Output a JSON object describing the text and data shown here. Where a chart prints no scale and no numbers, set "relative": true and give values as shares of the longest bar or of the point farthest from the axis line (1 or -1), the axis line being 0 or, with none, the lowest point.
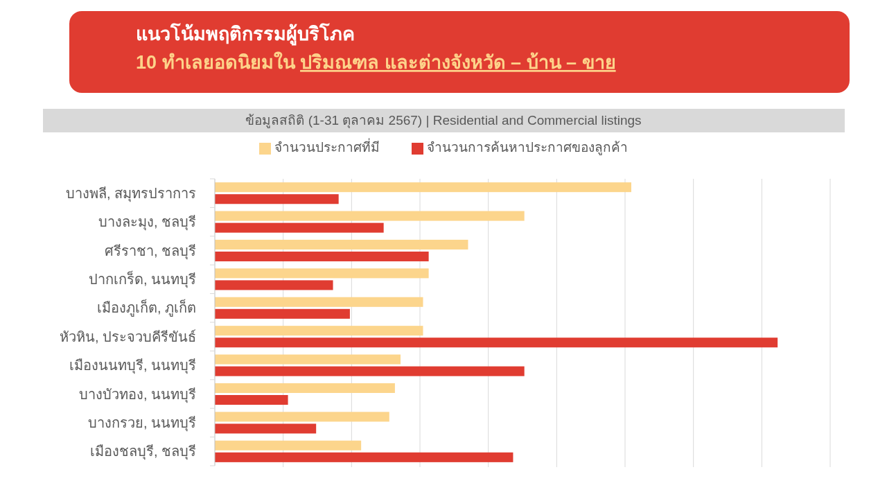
{
  "chart_data": {
    "type": "bar",
    "orientation": "horizontal",
    "relative": true,
    "title": "แนวโน้มพฤติกรรมผู้บริโภค",
    "subtitle": "10 ทำเลยอดนิยมใน ปริมณฑล และต่างจังหวัด – บ้าน – ขาย",
    "annotations": [
      "ข้อมูลสถิติ (1-31 ตุลาคม 2567) | Residential and Commercial listings"
    ],
    "categories": [
      "บางพลี, สมุทรปราการ",
      "บางละมุง, ชลบุรี",
      "ศรีราชา, ชลบุรี",
      "ปากเกร็ด, นนทบุรี",
      "เมืองภูเก็ต, ภูเก็ต",
      "หัวหิน, ประจวบคีรีขันธ์",
      "เมืองนนทบุรี, นนทบุรี",
      "บางบัวทอง, นนทบุรี",
      "บางกรวย, นนทบุรี",
      "เมืองชลบุรี, ชลบุรี"
    ],
    "series": [
      {
        "name": "จำนวนประกาศที่มี",
        "color": "#fcd58c",
        "values": [
          0.74,
          0.55,
          0.45,
          0.38,
          0.37,
          0.37,
          0.33,
          0.32,
          0.31,
          0.26
        ]
      },
      {
        "name": "จำนวนการค้นหาประกาศของลูกค้า",
        "color": "#e03c31",
        "values": [
          0.22,
          0.3,
          0.38,
          0.21,
          0.24,
          1,
          0.55,
          0.13,
          0.18,
          0.53
        ]
      }
    ],
    "grid": true,
    "legend": "top"
  }
}
